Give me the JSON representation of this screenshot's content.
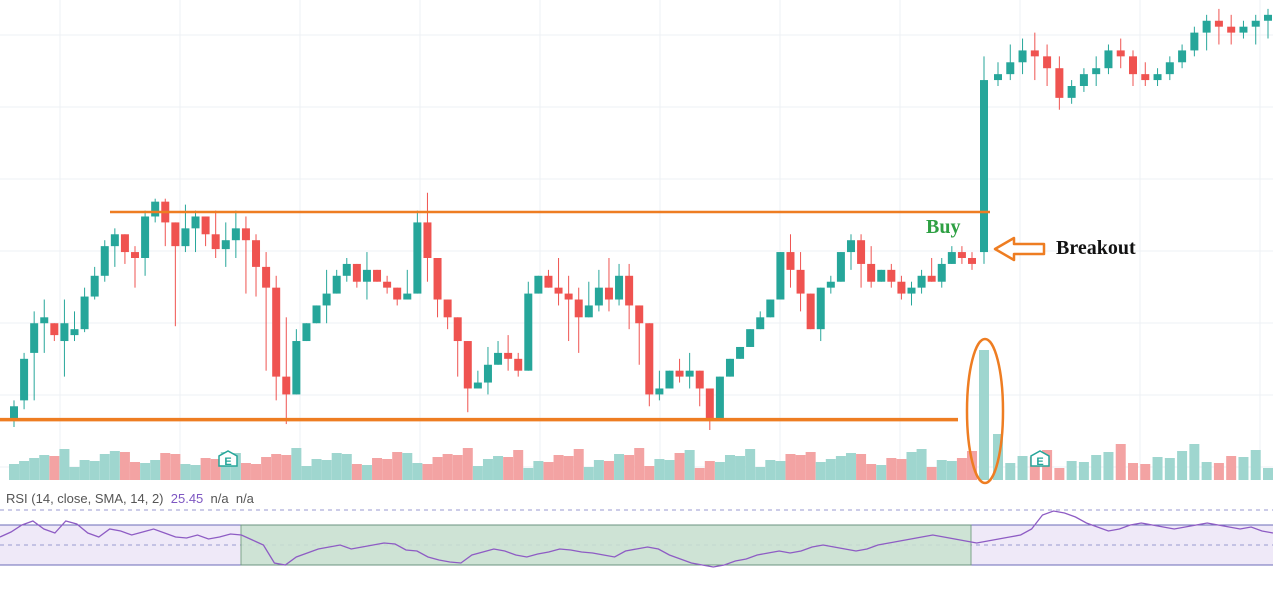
{
  "colors": {
    "up": "#26a69a",
    "down": "#ef5350",
    "up_volume": "#9fd6cf",
    "down_volume": "#f3a3a3",
    "rsi_line": "#8e5cc4",
    "rsi_band_fill": "#efe9f8",
    "rsi_band_line": "#6b6bb8",
    "zone_fill": "#c9e2cf",
    "zone_border": "#6b9a77",
    "level_line": "#ee7d22",
    "buy_text": "#2ea043",
    "breakout_text": "#111111",
    "grid": "#eef0f4"
  },
  "annotations": {
    "buy": "Buy",
    "breakout": "Breakout",
    "earnings_marker_1": "E",
    "earnings_marker_2": "E"
  },
  "rsi_indicator": {
    "label": "RSI (14, close, SMA, 14, 2)",
    "value": "25.45",
    "extra_1": "n/a",
    "extra_2": "n/a"
  },
  "chart_data": {
    "type": "candlestick",
    "title": "",
    "xlabel": "",
    "ylabel": "",
    "grid": true,
    "price_ylim": [
      0,
      100
    ],
    "candles": [
      [
        4,
        10,
        8,
        1
      ],
      [
        10,
        26,
        24,
        7
      ],
      [
        26,
        40,
        36,
        10
      ],
      [
        36,
        44,
        38,
        26
      ],
      [
        36,
        36,
        32,
        30
      ],
      [
        30,
        44,
        36,
        18
      ],
      [
        32,
        40,
        34,
        30
      ],
      [
        34,
        48,
        45,
        33
      ],
      [
        45,
        55,
        52,
        44
      ],
      [
        52,
        64,
        62,
        50
      ],
      [
        62,
        68,
        66,
        55
      ],
      [
        66,
        62,
        60,
        56
      ],
      [
        60,
        62,
        58,
        48
      ],
      [
        58,
        74,
        72,
        52
      ],
      [
        72,
        78,
        77,
        70
      ],
      [
        77,
        78,
        70,
        62
      ],
      [
        70,
        70,
        62,
        35
      ],
      [
        62,
        76,
        68,
        60
      ],
      [
        68,
        74,
        72,
        60
      ],
      [
        72,
        70,
        66,
        62
      ],
      [
        66,
        74,
        61,
        58
      ],
      [
        61,
        70,
        64,
        55
      ],
      [
        64,
        74,
        68,
        58
      ],
      [
        68,
        72,
        64,
        46
      ],
      [
        64,
        66,
        55,
        45
      ],
      [
        55,
        60,
        48,
        20
      ],
      [
        48,
        52,
        18,
        10
      ],
      [
        18,
        38,
        12,
        2
      ],
      [
        12,
        34,
        30,
        15
      ],
      [
        30,
        34,
        36,
        36
      ],
      [
        36,
        42,
        42,
        40
      ],
      [
        42,
        54,
        46,
        36
      ],
      [
        46,
        54,
        52,
        48
      ],
      [
        52,
        58,
        56,
        50
      ],
      [
        56,
        54,
        50,
        48
      ],
      [
        50,
        60,
        54,
        44
      ],
      [
        54,
        52,
        50,
        52
      ],
      [
        50,
        52,
        48,
        46
      ],
      [
        48,
        48,
        44,
        42
      ],
      [
        44,
        54,
        46,
        44
      ],
      [
        46,
        74,
        70,
        50
      ],
      [
        70,
        80,
        58,
        50
      ],
      [
        58,
        50,
        44,
        38
      ],
      [
        44,
        40,
        38,
        34
      ],
      [
        38,
        34,
        30,
        18
      ],
      [
        30,
        28,
        14,
        6
      ],
      [
        14,
        20,
        16,
        16
      ],
      [
        16,
        28,
        22,
        12
      ],
      [
        22,
        30,
        26,
        30
      ],
      [
        26,
        32,
        24,
        20
      ],
      [
        24,
        26,
        20,
        18
      ],
      [
        20,
        50,
        46,
        36
      ],
      [
        46,
        52,
        52,
        48
      ],
      [
        52,
        54,
        48,
        48
      ],
      [
        48,
        58,
        46,
        42
      ],
      [
        46,
        52,
        44,
        30
      ],
      [
        44,
        48,
        38,
        26
      ],
      [
        38,
        50,
        42,
        42
      ],
      [
        42,
        54,
        48,
        40
      ],
      [
        48,
        58,
        44,
        40
      ],
      [
        44,
        56,
        52,
        42
      ],
      [
        52,
        56,
        42,
        34
      ],
      [
        42,
        40,
        36,
        22
      ],
      [
        36,
        30,
        12,
        8
      ],
      [
        12,
        20,
        14,
        10
      ],
      [
        14,
        18,
        20,
        16
      ],
      [
        20,
        24,
        18,
        16
      ],
      [
        18,
        26,
        20,
        14
      ],
      [
        20,
        18,
        14,
        8
      ],
      [
        14,
        10,
        4,
        0
      ],
      [
        4,
        14,
        18,
        14
      ],
      [
        18,
        22,
        24,
        22
      ],
      [
        24,
        28,
        28,
        26
      ],
      [
        28,
        34,
        34,
        32
      ],
      [
        34,
        40,
        38,
        36
      ],
      [
        38,
        42,
        44,
        42
      ],
      [
        44,
        56,
        60,
        54
      ],
      [
        60,
        66,
        54,
        48
      ],
      [
        54,
        60,
        46,
        40
      ],
      [
        46,
        44,
        34,
        38
      ],
      [
        34,
        44,
        48,
        30
      ],
      [
        48,
        52,
        50,
        46
      ],
      [
        50,
        60,
        60,
        52
      ],
      [
        60,
        66,
        64,
        54
      ],
      [
        64,
        66,
        56,
        48
      ],
      [
        56,
        62,
        50,
        48
      ],
      [
        50,
        52,
        54,
        52
      ],
      [
        54,
        56,
        50,
        48
      ],
      [
        50,
        52,
        46,
        44
      ],
      [
        46,
        50,
        48,
        42
      ],
      [
        48,
        54,
        52,
        46
      ],
      [
        52,
        58,
        50,
        50
      ],
      [
        50,
        58,
        56,
        48
      ],
      [
        56,
        62,
        60,
        56
      ],
      [
        60,
        62,
        58,
        56
      ],
      [
        58,
        60,
        56,
        54
      ]
    ],
    "breakout_candle": [
      60,
      126,
      118,
      56
    ],
    "post_breakout_candles": [
      [
        118,
        124,
        120,
        116
      ],
      [
        120,
        130,
        124,
        118
      ],
      [
        124,
        132,
        128,
        120
      ],
      [
        128,
        134,
        126,
        118
      ],
      [
        126,
        130,
        122,
        116
      ],
      [
        122,
        126,
        112,
        108
      ],
      [
        112,
        118,
        116,
        110
      ],
      [
        116,
        122,
        120,
        114
      ],
      [
        120,
        126,
        122,
        116
      ],
      [
        122,
        130,
        128,
        120
      ],
      [
        128,
        132,
        126,
        122
      ],
      [
        126,
        128,
        120,
        116
      ],
      [
        120,
        124,
        118,
        116
      ],
      [
        118,
        122,
        120,
        116
      ],
      [
        120,
        126,
        124,
        118
      ],
      [
        124,
        130,
        128,
        122
      ],
      [
        128,
        136,
        134,
        126
      ],
      [
        134,
        140,
        138,
        128
      ],
      [
        138,
        142,
        136,
        130
      ],
      [
        136,
        140,
        134,
        130
      ],
      [
        134,
        138,
        136,
        132
      ],
      [
        136,
        140,
        138,
        130
      ],
      [
        138,
        142,
        140,
        132
      ]
    ],
    "resistance_level": 73.5,
    "support_level": 3.5,
    "volume": [
      [
        1,
        0
      ],
      [
        1,
        1
      ],
      [
        1,
        1
      ],
      [
        1,
        0
      ],
      [
        0,
        0
      ],
      [
        1,
        1
      ],
      [
        0,
        1
      ],
      [
        1,
        1
      ],
      [
        0,
        0
      ],
      [
        1,
        0
      ],
      [
        1,
        1
      ],
      [
        0,
        0
      ],
      [
        1,
        1
      ],
      [
        0,
        1
      ],
      [
        0,
        0
      ],
      [
        1,
        0
      ],
      [
        0,
        1
      ],
      [
        1,
        0
      ],
      [
        0,
        1
      ],
      [
        1,
        0
      ],
      [
        0,
        0
      ],
      [
        1,
        1
      ],
      [
        0,
        0
      ],
      [
        1,
        1
      ],
      [
        0,
        0
      ],
      [
        1,
        0
      ],
      [
        1,
        1
      ],
      [
        0,
        0
      ],
      [
        1,
        1
      ],
      [
        0,
        1
      ],
      [
        1,
        1
      ],
      [
        0,
        0
      ],
      [
        1,
        1
      ],
      [
        0,
        1
      ],
      [
        1,
        0
      ],
      [
        0,
        1
      ],
      [
        1,
        0
      ],
      [
        0,
        1
      ],
      [
        1,
        1
      ],
      [
        0,
        0
      ],
      [
        1,
        1
      ],
      [
        0,
        1
      ],
      [
        1,
        0
      ],
      [
        1,
        1
      ],
      [
        0,
        0
      ],
      [
        1,
        0
      ],
      [
        0,
        1
      ],
      [
        1,
        0
      ],
      [
        1,
        1
      ],
      [
        0,
        0
      ],
      [
        1,
        1
      ],
      [
        0,
        0
      ],
      [
        1,
        1
      ],
      [
        0,
        1
      ],
      [
        1,
        0
      ],
      [
        0,
        1
      ],
      [
        1,
        0
      ],
      [
        0,
        0
      ],
      [
        1,
        1
      ],
      [
        0,
        0
      ],
      [
        1,
        1
      ],
      [
        0,
        1
      ],
      [
        1,
        0
      ],
      [
        0,
        0
      ],
      [
        1,
        1
      ],
      [
        0,
        1
      ],
      [
        1,
        0
      ],
      [
        1,
        1
      ],
      [
        0,
        0
      ],
      [
        1,
        1
      ],
      [
        0,
        0
      ],
      [
        1,
        1
      ],
      [
        0,
        0
      ],
      [
        1,
        0
      ],
      [
        0,
        1
      ],
      [
        1,
        1
      ],
      [
        0,
        0
      ],
      [
        1,
        1
      ],
      [
        0,
        1
      ],
      [
        0,
        0
      ]
    ],
    "rsi_range": [
      0,
      100
    ],
    "rsi_band": [
      30,
      70
    ],
    "rsi_values": [
      58,
      63,
      70,
      74,
      66,
      62,
      74,
      71,
      62,
      58,
      66,
      64,
      60,
      63,
      66,
      62,
      58,
      57,
      60,
      56,
      58,
      61,
      60,
      55,
      50,
      32,
      30,
      38,
      42,
      46,
      48,
      50,
      46,
      48,
      50,
      52,
      51,
      45,
      44,
      38,
      35,
      33,
      32,
      40,
      43,
      46,
      44,
      40,
      38,
      41,
      43,
      46,
      45,
      43,
      42,
      40,
      38,
      44,
      46,
      48,
      46,
      40,
      36,
      32,
      30,
      28,
      30,
      34,
      36,
      40,
      42,
      44,
      42,
      44,
      48,
      50,
      48,
      46,
      44,
      46,
      50,
      52,
      54,
      56,
      58,
      60,
      58,
      56,
      54,
      52,
      54,
      56,
      58,
      60,
      66,
      80,
      84,
      82,
      78,
      72,
      68,
      64,
      66,
      70,
      72,
      70,
      68,
      66,
      68,
      70,
      72,
      70,
      68,
      66,
      68,
      64,
      62
    ],
    "rsi_zone_range": [
      30,
      70
    ]
  }
}
